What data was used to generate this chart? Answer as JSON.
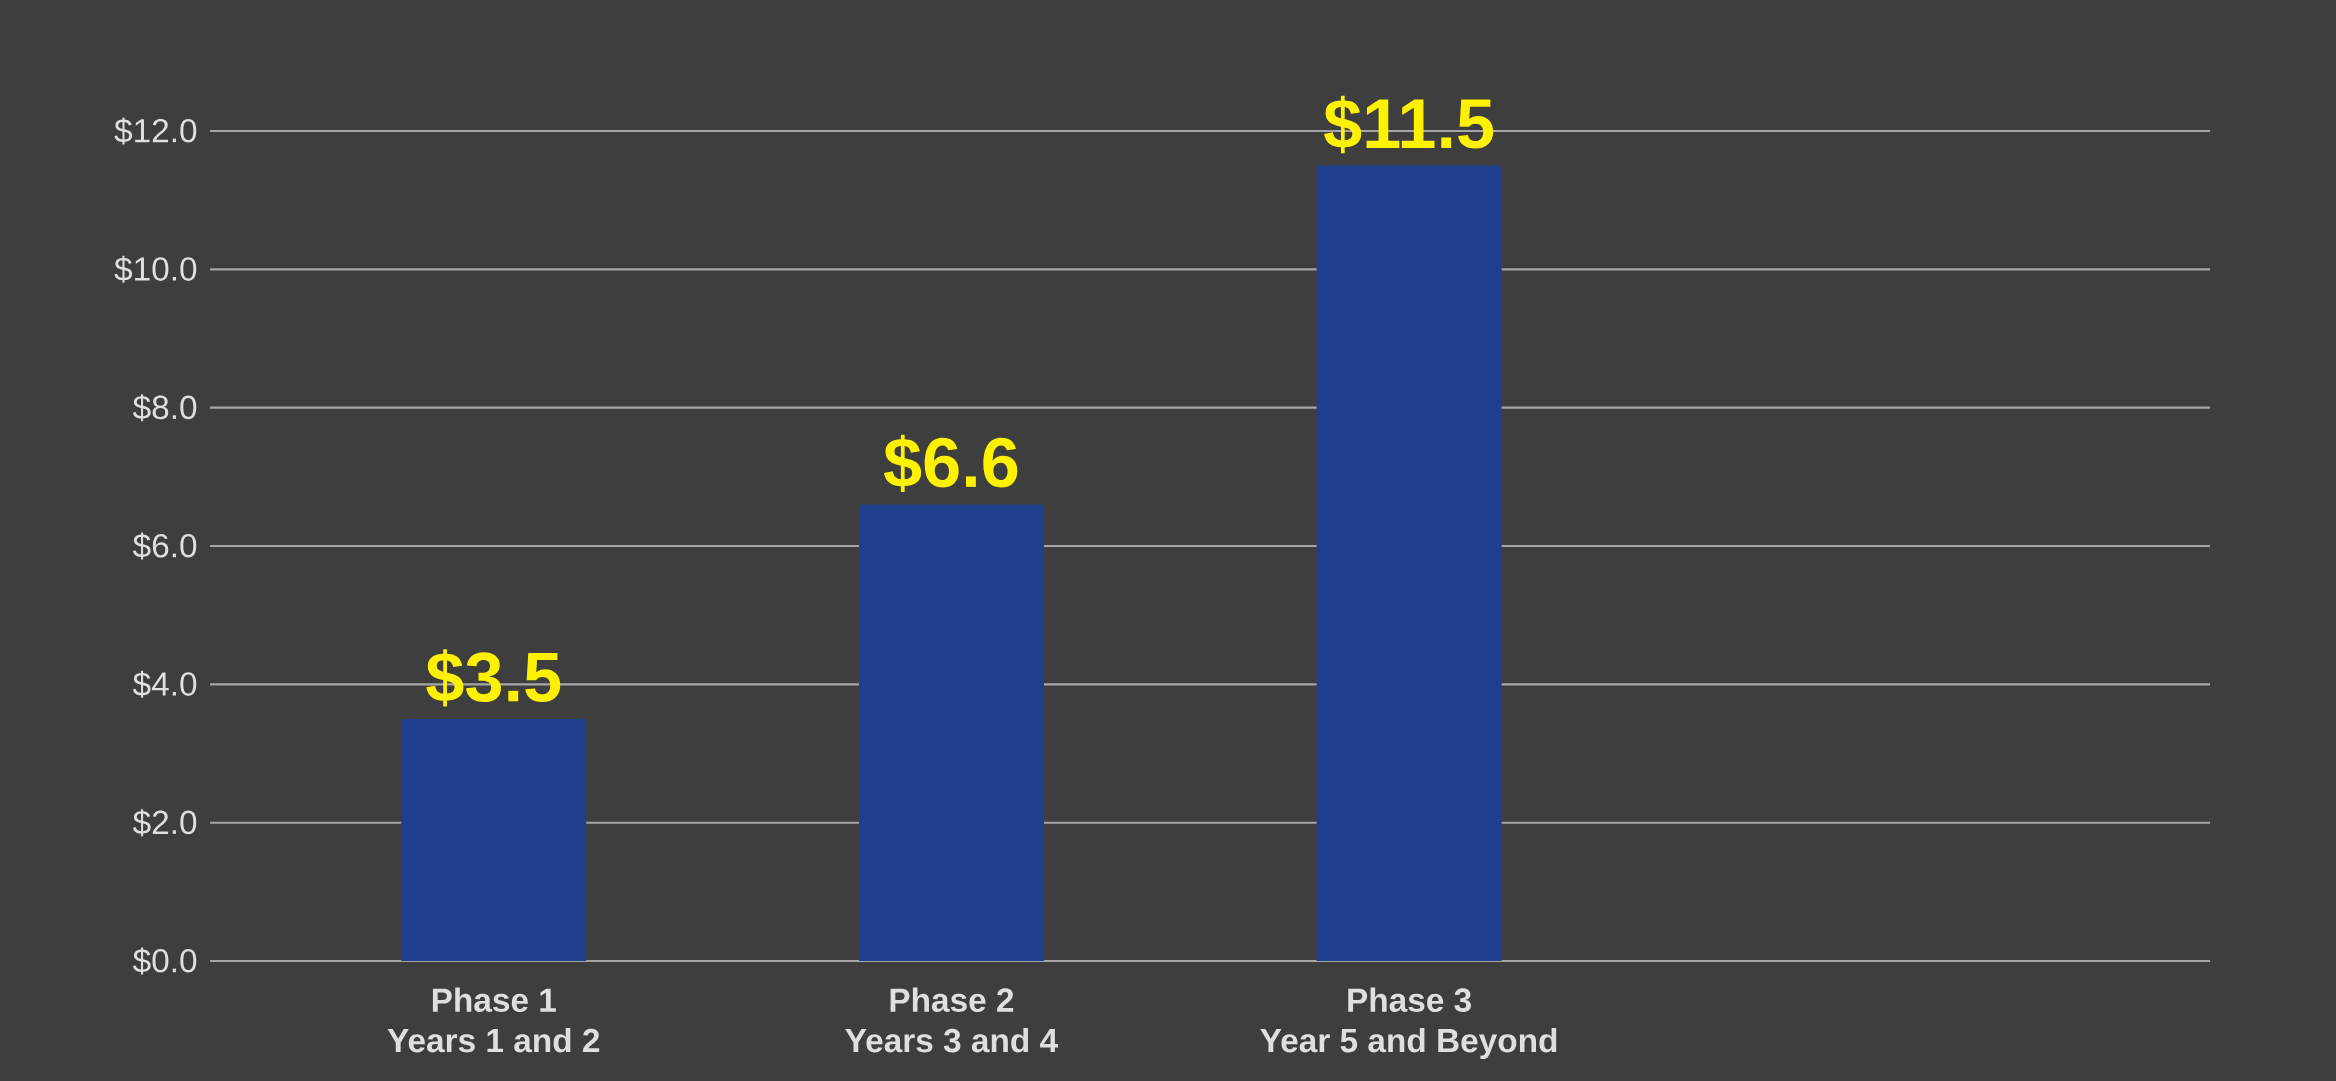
{
  "chart_data": {
    "type": "bar",
    "categories": [
      "Phase 1\nYears 1 and 2",
      "Phase 2\nYears 3 and 4",
      "Phase 3\nYear 5 and Beyond"
    ],
    "values": [
      3.5,
      6.6,
      11.5
    ],
    "color": "#1d3f8c",
    "ylim": [
      0,
      12
    ],
    "yticks": [
      {
        "value": 0,
        "label": "$0.0"
      },
      {
        "value": 2,
        "label": "$2.0"
      },
      {
        "value": 4,
        "label": "$4.0"
      },
      {
        "value": 6,
        "label": "$6.0"
      },
      {
        "value": 8,
        "label": "$8.0"
      },
      {
        "value": 10,
        "label": "$10.0"
      },
      {
        "value": 12,
        "label": "$12.0"
      }
    ],
    "value_labels": [
      "$3.5",
      "$6.6",
      "$11.5"
    ],
    "grid": "y"
  }
}
